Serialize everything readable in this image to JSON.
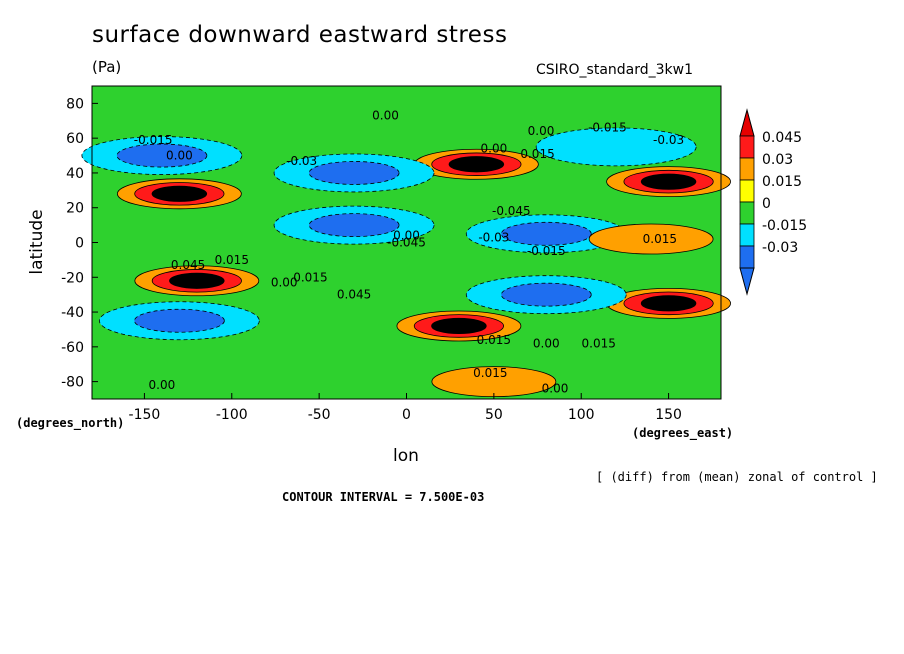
{
  "page": {
    "title": "surface downward eastward stress",
    "units": "(Pa)",
    "dataset": "CSIRO_standard_3kw1",
    "y_units": "(degrees_north)",
    "x_units": "(degrees_east)",
    "diff_note": "[ (diff) from (mean) zonal of control ]",
    "contour_interval": "CONTOUR INTERVAL = 7.500E-03"
  },
  "chart_data": {
    "type": "heatmap",
    "xlabel": "lon",
    "ylabel": "latitude",
    "xlim": [
      -180,
      180
    ],
    "ylim": [
      -90,
      90
    ],
    "x_ticks": [
      -150,
      -100,
      -50,
      0,
      50,
      100,
      150
    ],
    "y_ticks": [
      -80,
      -60,
      -40,
      -20,
      0,
      20,
      40,
      60,
      80
    ],
    "x_tick_labels": [
      "-150",
      "-100",
      "-50",
      "0",
      "50",
      "100",
      "150"
    ],
    "y_tick_labels": [
      "-80",
      "-60",
      "-40",
      "-20",
      "0",
      "20",
      "40",
      "60",
      "80"
    ],
    "colorbar": {
      "levels": [
        -0.03,
        -0.015,
        0,
        0.015,
        0.03,
        0.045
      ],
      "labels": [
        "-0.03",
        "-0.015",
        "0",
        "0.015",
        "0.03",
        "0.045"
      ],
      "colors": [
        "#1e6ef0",
        "#00e0ff",
        "#2ed12e",
        "#ffff00",
        "#ffa000",
        "#ff1a1a"
      ],
      "extend": "both"
    },
    "field_features": [
      {
        "lon": -130,
        "lat": 28,
        "value": 0.05
      },
      {
        "lon": -120,
        "lat": -22,
        "value": 0.05
      },
      {
        "lon": 150,
        "lat": 35,
        "value": 0.05
      },
      {
        "lon": 40,
        "lat": 45,
        "value": 0.045
      },
      {
        "lon": 30,
        "lat": -48,
        "value": 0.05
      },
      {
        "lon": 150,
        "lat": -35,
        "value": 0.05
      },
      {
        "lon": -30,
        "lat": 10,
        "value": -0.03
      },
      {
        "lon": 80,
        "lat": 5,
        "value": -0.035
      },
      {
        "lon": -30,
        "lat": 40,
        "value": -0.03
      },
      {
        "lon": -140,
        "lat": 50,
        "value": -0.03
      },
      {
        "lon": 120,
        "lat": 55,
        "value": -0.025
      },
      {
        "lon": -130,
        "lat": -45,
        "value": -0.03
      },
      {
        "lon": 80,
        "lat": -30,
        "value": -0.03
      },
      {
        "lon": 140,
        "lat": 2,
        "value": 0.02
      },
      {
        "lon": 50,
        "lat": -80,
        "value": 0.02
      }
    ],
    "contour_labels": [
      {
        "text": "0.00",
        "lon": -12,
        "lat": 73
      },
      {
        "text": "0.00",
        "lon": 77,
        "lat": 64
      },
      {
        "text": "-0.015",
        "lon": 115,
        "lat": 66
      },
      {
        "text": "-0.015",
        "lon": -145,
        "lat": 59
      },
      {
        "text": "-0.03",
        "lon": 150,
        "lat": 59
      },
      {
        "text": "0.00",
        "lon": -130,
        "lat": 50
      },
      {
        "text": "0.00",
        "lon": 50,
        "lat": 54
      },
      {
        "text": "0.015",
        "lon": 75,
        "lat": 51
      },
      {
        "text": "-0.03",
        "lon": -60,
        "lat": 47
      },
      {
        "text": "-0.045",
        "lon": 60,
        "lat": 18
      },
      {
        "text": "-0.045",
        "lon": 0,
        "lat": 0
      },
      {
        "text": "-0.03",
        "lon": 50,
        "lat": 3
      },
      {
        "text": "0.015",
        "lon": 145,
        "lat": 2
      },
      {
        "text": "0.00",
        "lon": 0,
        "lat": 4
      },
      {
        "text": "-0.015",
        "lon": 80,
        "lat": -5
      },
      {
        "text": "0.045",
        "lon": -125,
        "lat": -13
      },
      {
        "text": "0.015",
        "lon": -100,
        "lat": -10
      },
      {
        "text": "0.00",
        "lon": -70,
        "lat": -23
      },
      {
        "text": "0.015",
        "lon": -55,
        "lat": -20
      },
      {
        "text": "0.045",
        "lon": -30,
        "lat": -30
      },
      {
        "text": "0.015",
        "lon": 50,
        "lat": -56
      },
      {
        "text": "0.00",
        "lon": 80,
        "lat": -58
      },
      {
        "text": "0.015",
        "lon": 110,
        "lat": -58
      },
      {
        "text": "0.015",
        "lon": 48,
        "lat": -75
      },
      {
        "text": "0.00",
        "lon": -140,
        "lat": -82
      },
      {
        "text": "0.00",
        "lon": 85,
        "lat": -84
      }
    ]
  }
}
